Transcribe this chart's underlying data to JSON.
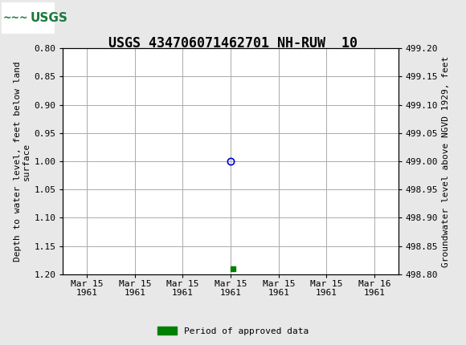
{
  "title": "USGS 434706071462701 NH-RUW  10",
  "header_bg_color": "#1a7a3c",
  "plot_bg_color": "#ffffff",
  "outer_bg_color": "#e8e8e8",
  "grid_color": "#aaaaaa",
  "left_ylabel": "Depth to water level, feet below land\nsurface",
  "right_ylabel": "Groundwater level above NGVD 1929, feet",
  "ylim_left_top": 0.8,
  "ylim_left_bottom": 1.2,
  "ylim_right_top": 499.2,
  "ylim_right_bottom": 498.8,
  "left_yticks": [
    0.8,
    0.85,
    0.9,
    0.95,
    1.0,
    1.05,
    1.1,
    1.15,
    1.2
  ],
  "right_yticks": [
    499.2,
    499.15,
    499.1,
    499.05,
    499.0,
    498.95,
    498.9,
    498.85,
    498.8
  ],
  "xtick_labels": [
    "Mar 15\n1961",
    "Mar 15\n1961",
    "Mar 15\n1961",
    "Mar 15\n1961",
    "Mar 15\n1961",
    "Mar 15\n1961",
    "Mar 16\n1961"
  ],
  "xtick_positions": [
    0,
    1,
    2,
    3,
    4,
    5,
    6
  ],
  "data_point_x": 3,
  "data_point_y": 1.0,
  "data_point_color": "#0000cc",
  "period_marker_x": 3.05,
  "period_marker_y": 1.19,
  "period_bar_color": "#008000",
  "legend_label": "Period of approved data",
  "font_family": "monospace",
  "title_fontsize": 12,
  "axis_label_fontsize": 8,
  "tick_fontsize": 8
}
